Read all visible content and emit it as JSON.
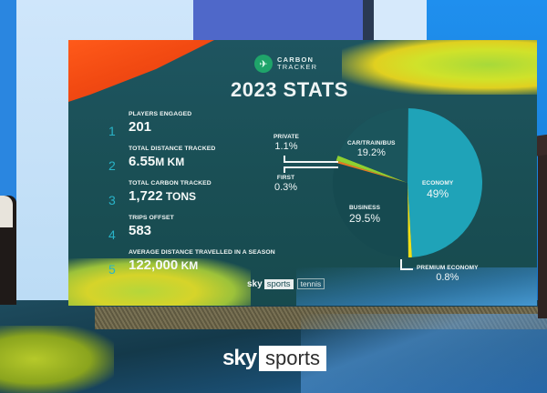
{
  "screen": {
    "logo": {
      "line1": "CARBON",
      "line2": "TRACKER",
      "icon": "plane-icon"
    },
    "title": "2023 STATS",
    "stats": [
      {
        "num": "1",
        "label": "PLAYERS ENGAGED",
        "value": "201",
        "unit": ""
      },
      {
        "num": "2",
        "label": "TOTAL DISTANCE TRACKED",
        "value": "6.55",
        "unit": "M KM"
      },
      {
        "num": "3",
        "label": "TOTAL CARBON TRACKED",
        "value": "1,722",
        "unit": " TONS"
      },
      {
        "num": "4",
        "label": "TRIPS OFFSET",
        "value": "583",
        "unit": ""
      },
      {
        "num": "5",
        "label": "AVERAGE DISTANCE TRAVELLED IN A SEASON",
        "value": "122,000",
        "unit": " KM"
      }
    ],
    "pie_labels": {
      "private": {
        "label": "PRIVATE",
        "pct": "1.1%"
      },
      "first": {
        "label": "FIRST",
        "pct": "0.3%"
      },
      "car": {
        "label": "CAR/TRAIN/BUS",
        "pct": "19.2%"
      },
      "economy": {
        "label": "ECONOMY",
        "pct": "49%"
      },
      "business": {
        "label": "BUSINESS",
        "pct": "29.5%"
      },
      "premium": {
        "label": "PREMIUM ECONOMY",
        "pct": "0.8%"
      }
    },
    "brand": {
      "sky": "sky",
      "sports": "sports",
      "tennis": "tennis"
    }
  },
  "broadcast_logo": {
    "sky": "sky",
    "sports": "sports"
  },
  "colors": {
    "economy": "#1fa3b8",
    "business": "#164a50",
    "car": "#1b555c",
    "premium": "#f0e018",
    "first": "#e87a20",
    "private": "#8fd030",
    "accent_number": "#29b3c8"
  },
  "chart_data": {
    "type": "pie",
    "title": "2023 STATS",
    "categories": [
      "Economy",
      "Business",
      "Car/Train/Bus",
      "Private",
      "Premium Economy",
      "First"
    ],
    "values": [
      49,
      29.5,
      19.2,
      1.1,
      0.8,
      0.3
    ],
    "unit": "%",
    "legend": "inline labels with leader lines"
  }
}
